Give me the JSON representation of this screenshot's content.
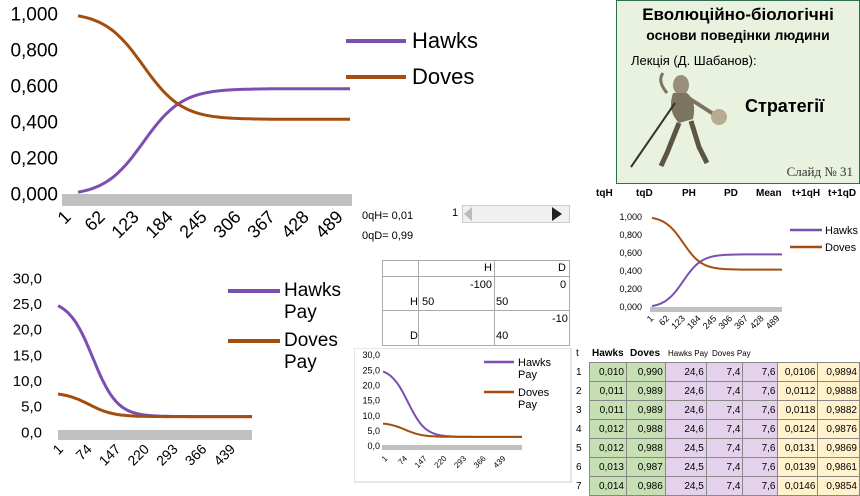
{
  "chart_main": {
    "type": "line",
    "ylim": [
      0,
      1
    ],
    "yticks": [
      "1,000",
      "0,800",
      "0,600",
      "0,400",
      "0,200",
      "0,000"
    ],
    "xticks": [
      "1",
      "62",
      "123",
      "184",
      "245",
      "306",
      "367",
      "428",
      "489"
    ],
    "series": [
      {
        "name": "Hawks",
        "color": "#7b4fb0",
        "start": 0.01,
        "end": 0.585
      },
      {
        "name": "Doves",
        "color": "#a34e0f",
        "start": 0.99,
        "end": 0.415
      }
    ]
  },
  "chart_pay": {
    "type": "line",
    "ylim": [
      0,
      30
    ],
    "yticks": [
      "30,0",
      "25,0",
      "20,0",
      "15,0",
      "10,0",
      "5,0",
      "0,0"
    ],
    "xticks": [
      "1",
      "74",
      "147",
      "220",
      "293",
      "366",
      "439"
    ],
    "series": [
      {
        "name": "Hawks Pay",
        "color": "#7b4fb0",
        "start": 24.6,
        "end": 3.0
      },
      {
        "name": "Doves Pay",
        "color": "#a34e0f",
        "start": 7.4,
        "end": 3.0
      }
    ]
  },
  "title_box": {
    "line1": "Еволюційно-біологічні",
    "line2": "основи поведінки людини",
    "line3": "Лекція (Д. Шабанов):",
    "line4": "Стратегії",
    "line5": "Слайд № 31"
  },
  "col_headers": {
    "h1": "tqH",
    "h2": "tqD",
    "h3": "PH",
    "h4": "PD",
    "h5": "Mean",
    "h6": "t+1qH",
    "h7": "t+1qD"
  },
  "params": {
    "qh": "0qH= 0,01",
    "qd": "0qD= 0,99",
    "slider_value": "1"
  },
  "payoff": {
    "h_col": "H",
    "d_col": "D",
    "h_row": "H",
    "d_row": "D",
    "hh_top": "-100",
    "hh_bottom": "50",
    "hd_top": "0",
    "hd_bottom": "50",
    "dd_top": "-10",
    "dd_bottom": "40"
  },
  "data_table": {
    "headers": [
      "t",
      "Hawks",
      "Doves",
      "Hawks Pay",
      "Doves Pay"
    ],
    "rows": [
      [
        "1",
        "0,010",
        "0,990",
        "24,6",
        "7,4",
        "7,6",
        "0,0106",
        "0,9894"
      ],
      [
        "2",
        "0,011",
        "0,989",
        "24,6",
        "7,4",
        "7,6",
        "0,0112",
        "0,9888"
      ],
      [
        "3",
        "0,011",
        "0,989",
        "24,6",
        "7,4",
        "7,6",
        "0,0118",
        "0,9882"
      ],
      [
        "4",
        "0,012",
        "0,988",
        "24,6",
        "7,4",
        "7,6",
        "0,0124",
        "0,9876"
      ],
      [
        "5",
        "0,012",
        "0,988",
        "24,5",
        "7,4",
        "7,6",
        "0,0131",
        "0,9869"
      ],
      [
        "6",
        "0,013",
        "0,987",
        "24,5",
        "7,4",
        "7,6",
        "0,0139",
        "0,9861"
      ],
      [
        "7",
        "0,014",
        "0,986",
        "24,5",
        "7,4",
        "7,6",
        "0,0146",
        "0,9854"
      ]
    ]
  }
}
